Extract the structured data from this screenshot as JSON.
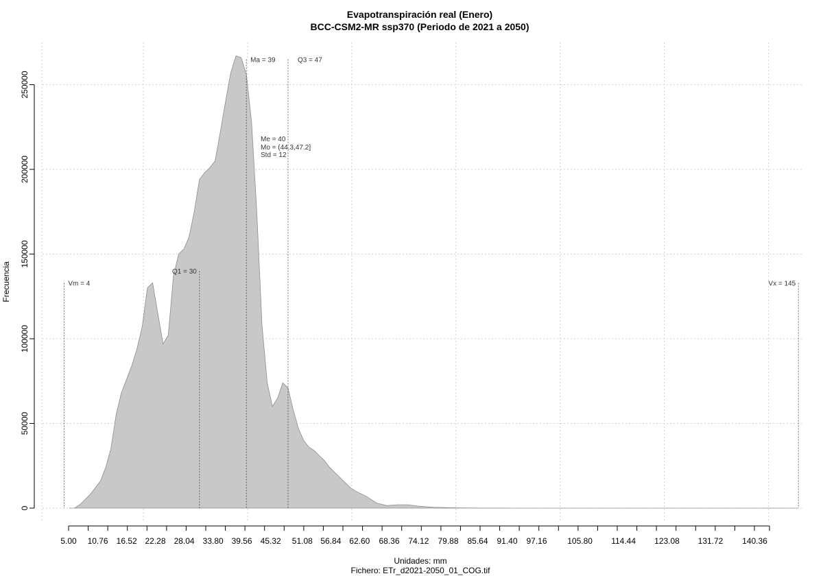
{
  "chart_data": {
    "type": "area",
    "title": "Evapotranspiración real (Enero)",
    "subtitle": "BCC-CSM2-MR ssp370 (Periodo de 2021 a 2050)",
    "xlabel": "Unidades: mm",
    "caption": "Fichero: ETr_d2021-2050_01_COG.tif",
    "ylabel": "Frecuencia",
    "xlim": [
      0,
      145.5
    ],
    "ylim": [
      0,
      270000
    ],
    "grid": true,
    "fill_color": "#c8c8c8",
    "line_color": "#8c8c8c",
    "x_tick_labels": [
      "5.00",
      "10.76",
      "16.52",
      "22.28",
      "28.04",
      "33.80",
      "39.56",
      "45.32",
      "51.08",
      "56.84",
      "62.60",
      "68.36",
      "74.12",
      "79.88",
      "85.64",
      "91.40",
      "97.16",
      "105.80",
      "114.44",
      "123.08",
      "131.72",
      "140.36"
    ],
    "y_ticks": [
      0,
      50000,
      100000,
      150000,
      200000,
      250000
    ],
    "y_tick_labels": [
      "0",
      "50000",
      "100000",
      "150000",
      "200000",
      "250000"
    ],
    "x": [
      5,
      6,
      7,
      8,
      9,
      10,
      11,
      12,
      13,
      14,
      15,
      16,
      17,
      18,
      19,
      20,
      21,
      22,
      23,
      24,
      25,
      26,
      27,
      28,
      29,
      30,
      31,
      32,
      33,
      34,
      35,
      36,
      37,
      38,
      39,
      40,
      41,
      42,
      43,
      44,
      45,
      46,
      47,
      48,
      49,
      50,
      51,
      52,
      53,
      54,
      55,
      56,
      57,
      58,
      59,
      60,
      62,
      64,
      66,
      68,
      70,
      72,
      74,
      75,
      76,
      78,
      80,
      82,
      84,
      86,
      88,
      90,
      95,
      100,
      110,
      120,
      130,
      140,
      145
    ],
    "y": [
      0,
      0,
      2000,
      5000,
      8000,
      12000,
      16000,
      24000,
      35000,
      55000,
      68000,
      76000,
      84000,
      94000,
      107000,
      130000,
      133000,
      115000,
      97000,
      102000,
      137000,
      150000,
      153000,
      160000,
      175000,
      194000,
      198000,
      201000,
      205000,
      222000,
      240000,
      257000,
      267000,
      266000,
      256000,
      228000,
      175000,
      108000,
      74000,
      60000,
      65000,
      74000,
      71000,
      58000,
      47000,
      40000,
      36000,
      34000,
      31000,
      28000,
      24000,
      21000,
      18000,
      15000,
      12000,
      10000,
      7000,
      3000,
      1500,
      2000,
      2000,
      1200,
      700,
      500,
      400,
      250,
      150,
      100,
      60,
      40,
      30,
      20,
      10,
      5,
      3,
      2,
      1,
      1,
      0
    ],
    "annotations": [
      {
        "name": "vm",
        "label": "Vm = 4",
        "x": 4,
        "y_top": 133000,
        "align": "start"
      },
      {
        "name": "q1",
        "label": "Q1 = 30",
        "x": 30,
        "y_top": 140000,
        "align": "end"
      },
      {
        "name": "ma",
        "label": "Ma = 39",
        "x": 39,
        "y_top": 265000,
        "align": "start"
      },
      {
        "name": "q3",
        "label": "Q3 = 47",
        "x": 47,
        "y_top": 265000,
        "align": "start-offset"
      },
      {
        "name": "vx",
        "label": "Vx = 145",
        "x": 145,
        "y_top": 133000,
        "align": "end"
      }
    ],
    "stats": [
      "Me = 40",
      "Mo = (44.3,47.2]",
      "Std = 12"
    ]
  }
}
